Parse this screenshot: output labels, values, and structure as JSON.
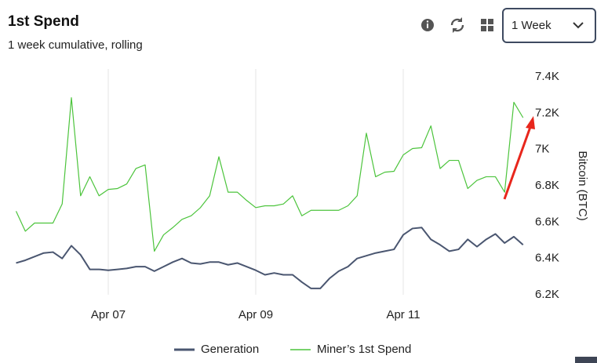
{
  "header": {
    "title": "1st Spend",
    "subtitle": "1 week cumulative, rolling",
    "range_select": "1 Week"
  },
  "chart_data": {
    "type": "line",
    "categories": [
      null,
      null,
      null,
      null,
      null,
      null,
      null,
      null,
      null,
      null,
      "Apr 07",
      null,
      null,
      null,
      null,
      null,
      null,
      null,
      null,
      null,
      null,
      null,
      null,
      null,
      null,
      null,
      "Apr 09",
      null,
      null,
      null,
      null,
      null,
      null,
      null,
      null,
      null,
      null,
      null,
      null,
      null,
      null,
      null,
      "Apr 11",
      null,
      null,
      null,
      null,
      null,
      null,
      null,
      null,
      null,
      null,
      null,
      null,
      null
    ],
    "y_label": "Bitcoin (BTC)",
    "ylim": [
      6200,
      7400
    ],
    "yticks": [
      {
        "value": 6200,
        "label": "6.2K"
      },
      {
        "value": 6400,
        "label": "6.4K"
      },
      {
        "value": 6600,
        "label": "6.6K"
      },
      {
        "value": 6800,
        "label": "6.8K"
      },
      {
        "value": 7000,
        "label": "7K"
      },
      {
        "value": 7200,
        "label": "7.2K"
      },
      {
        "value": 7400,
        "label": "7.4K"
      }
    ],
    "grid": "x",
    "series": [
      {
        "name": "Generation",
        "color": "#4a5670",
        "values": [
          6375,
          6390,
          6410,
          6430,
          6435,
          6400,
          6470,
          6420,
          6340,
          6340,
          6335,
          6340,
          6345,
          6355,
          6355,
          6330,
          6355,
          6380,
          6400,
          6375,
          6370,
          6380,
          6380,
          6365,
          6375,
          6355,
          6335,
          6310,
          6320,
          6310,
          6310,
          6270,
          6235,
          6235,
          6290,
          6330,
          6355,
          6400,
          6415,
          6430,
          6440,
          6450,
          6530,
          6565,
          6570,
          6505,
          6475,
          6440,
          6450,
          6505,
          6465,
          6505,
          6535,
          6485,
          6520,
          6475
        ]
      },
      {
        "name": "Miner’s 1st Spend",
        "color": "#4cc43c",
        "values": [
          6660,
          6550,
          6595,
          6595,
          6595,
          6700,
          7285,
          6745,
          6850,
          6745,
          6780,
          6785,
          6810,
          6895,
          6915,
          6440,
          6530,
          6570,
          6615,
          6635,
          6680,
          6745,
          6960,
          6765,
          6765,
          6720,
          6680,
          6690,
          6690,
          6700,
          6745,
          6635,
          6665,
          6665,
          6665,
          6665,
          6690,
          6745,
          7090,
          6850,
          6875,
          6880,
          6970,
          7005,
          7010,
          7130,
          6895,
          6940,
          6940,
          6785,
          6830,
          6850,
          6850,
          6765,
          7260,
          7175
        ]
      }
    ]
  }
}
